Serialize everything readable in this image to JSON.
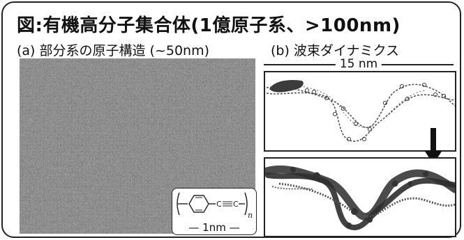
{
  "figure": {
    "title": "図:有機高分子集合体(1億原子系、>100nm)",
    "panel_a_caption": "(a) 部分系の原子構造 (~50nm)",
    "panel_b_caption": "(b) 波束ダイナミクス",
    "scale_bar_label": "15 nm",
    "inset_scale_label": "— 1nm —",
    "inset_subscript": "n"
  },
  "colors": {
    "frame": "#222222",
    "polymer_dark": "#3c3c3c",
    "background": "#ffffff"
  }
}
